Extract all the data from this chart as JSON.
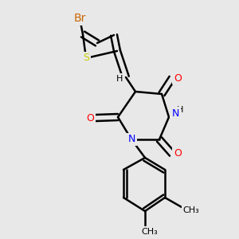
{
  "bg_color": "#e8e8e8",
  "bond_color": "#000000",
  "bond_width": 1.8,
  "atom_colors": {
    "Br": "#cc6600",
    "S": "#cccc00",
    "O": "#ff0000",
    "N": "#0000ff",
    "H": "#000000",
    "C": "#000000"
  },
  "font_size": 9,
  "fig_size": [
    3.0,
    3.0
  ],
  "dpi": 100
}
